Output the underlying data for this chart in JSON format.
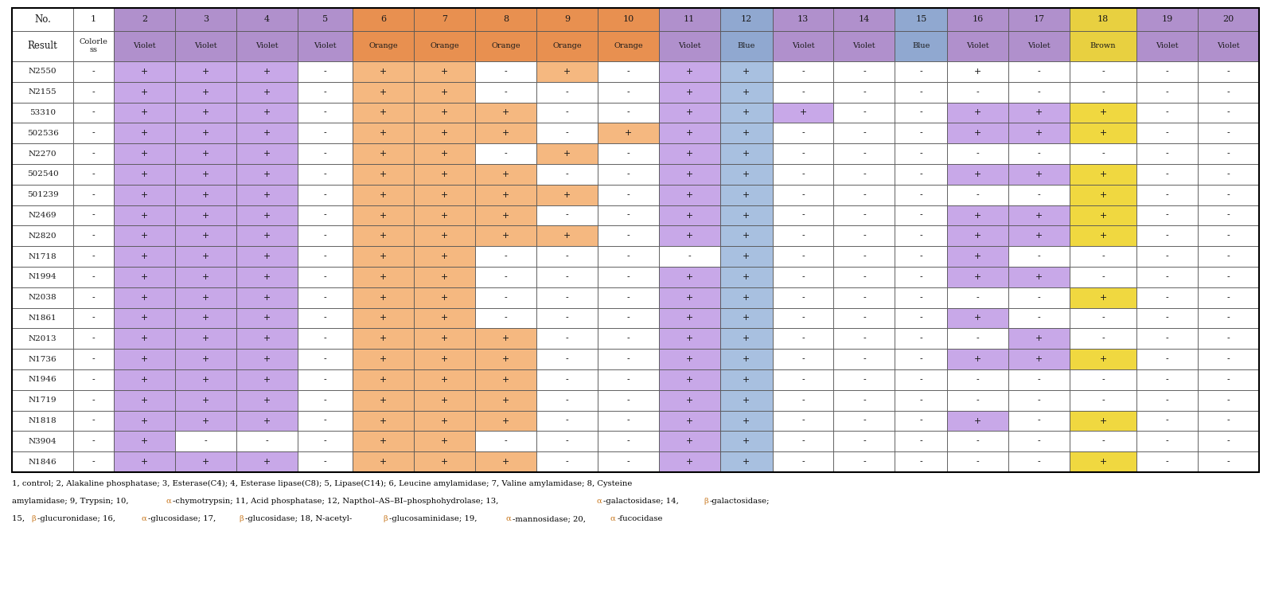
{
  "col_numbers": [
    "No.",
    "1",
    "2",
    "3",
    "4",
    "5",
    "6",
    "7",
    "8",
    "9",
    "10",
    "11",
    "12",
    "13",
    "14",
    "15",
    "16",
    "17",
    "18",
    "19",
    "20"
  ],
  "col_results": [
    "Result",
    "Colorle\nss",
    "Violet",
    "Violet",
    "Violet",
    "Violet",
    "Orange",
    "Orange",
    "Orange",
    "Orange",
    "Orange",
    "Violet",
    "Blue",
    "Violet",
    "Violet",
    "Blue",
    "Violet",
    "Violet",
    "Brown",
    "Violet",
    "Violet"
  ],
  "row_labels": [
    "N2550",
    "N2155",
    "53310",
    "502536",
    "N2270",
    "502540",
    "501239",
    "N2469",
    "N2820",
    "N1718",
    "N1994",
    "N2038",
    "N1861",
    "N2013",
    "N1736",
    "N1946",
    "N1719",
    "N1818",
    "N3904",
    "N1846"
  ],
  "data": [
    [
      "-",
      "+",
      "+",
      "+",
      "-",
      "+",
      "+",
      "-",
      "+",
      "-",
      "+",
      "+",
      "-",
      "-",
      "-",
      "+",
      "-",
      "-",
      "-",
      "-"
    ],
    [
      "-",
      "+",
      "+",
      "+",
      "-",
      "+",
      "+",
      "-",
      "-",
      "-",
      "+",
      "+",
      "-",
      "-",
      "-",
      "-",
      "-",
      "-",
      "-",
      "-"
    ],
    [
      "-",
      "+",
      "+",
      "+",
      "-",
      "+",
      "+",
      "+",
      "-",
      "-",
      "+",
      "+",
      "+",
      "-",
      "-",
      "+",
      "+",
      "+",
      "-",
      "-"
    ],
    [
      "-",
      "+",
      "+",
      "+",
      "-",
      "+",
      "+",
      "+",
      "-",
      "+",
      "+",
      "+",
      "-",
      "-",
      "-",
      "+",
      "+",
      "+",
      "-",
      "-"
    ],
    [
      "-",
      "+",
      "+",
      "+",
      "-",
      "+",
      "+",
      "-",
      "+",
      "-",
      "+",
      "+",
      "-",
      "-",
      "-",
      "-",
      "-",
      "-",
      "-",
      "-"
    ],
    [
      "-",
      "+",
      "+",
      "+",
      "-",
      "+",
      "+",
      "+",
      "-",
      "-",
      "+",
      "+",
      "-",
      "-",
      "-",
      "+",
      "+",
      "+",
      "-",
      "-"
    ],
    [
      "-",
      "+",
      "+",
      "+",
      "-",
      "+",
      "+",
      "+",
      "+",
      "-",
      "+",
      "+",
      "-",
      "-",
      "-",
      "-",
      "-",
      "+",
      "-",
      "-"
    ],
    [
      "-",
      "+",
      "+",
      "+",
      "-",
      "+",
      "+",
      "+",
      "-",
      "-",
      "+",
      "+",
      "-",
      "-",
      "-",
      "+",
      "+",
      "+",
      "-",
      "-"
    ],
    [
      "-",
      "+",
      "+",
      "+",
      "-",
      "+",
      "+",
      "+",
      "+",
      "-",
      "+",
      "+",
      "-",
      "-",
      "-",
      "+",
      "+",
      "+",
      "-",
      "-"
    ],
    [
      "-",
      "+",
      "+",
      "+",
      "-",
      "+",
      "+",
      "-",
      "-",
      "-",
      "-",
      "+",
      "-",
      "-",
      "-",
      "+",
      "-",
      "-",
      "-",
      "-"
    ],
    [
      "-",
      "+",
      "+",
      "+",
      "-",
      "+",
      "+",
      "-",
      "-",
      "-",
      "+",
      "+",
      "-",
      "-",
      "-",
      "+",
      "+",
      "-",
      "-",
      "-"
    ],
    [
      "-",
      "+",
      "+",
      "+",
      "-",
      "+",
      "+",
      "-",
      "-",
      "-",
      "+",
      "+",
      "-",
      "-",
      "-",
      "-",
      "-",
      "+",
      "-",
      "-"
    ],
    [
      "-",
      "+",
      "+",
      "+",
      "-",
      "+",
      "+",
      "-",
      "-",
      "-",
      "+",
      "+",
      "-",
      "-",
      "-",
      "+",
      "-",
      "-",
      "-",
      "-"
    ],
    [
      "-",
      "+",
      "+",
      "+",
      "-",
      "+",
      "+",
      "+",
      "-",
      "-",
      "+",
      "+",
      "-",
      "-",
      "-",
      "-",
      "+",
      "-",
      "-",
      "-"
    ],
    [
      "-",
      "+",
      "+",
      "+",
      "-",
      "+",
      "+",
      "+",
      "-",
      "-",
      "+",
      "+",
      "-",
      "-",
      "-",
      "+",
      "+",
      "+",
      "-",
      "-"
    ],
    [
      "-",
      "+",
      "+",
      "+",
      "-",
      "+",
      "+",
      "+",
      "-",
      "-",
      "+",
      "+",
      "-",
      "-",
      "-",
      "-",
      "-",
      "-",
      "-",
      "-"
    ],
    [
      "-",
      "+",
      "+",
      "+",
      "-",
      "+",
      "+",
      "+",
      "-",
      "-",
      "+",
      "+",
      "-",
      "-",
      "-",
      "-",
      "-",
      "-",
      "-",
      "-"
    ],
    [
      "-",
      "+",
      "+",
      "+",
      "-",
      "+",
      "+",
      "+",
      "-",
      "-",
      "+",
      "+",
      "-",
      "-",
      "-",
      "+",
      "-",
      "+",
      "-",
      "-"
    ],
    [
      "-",
      "+",
      "-",
      "-",
      "-",
      "+",
      "+",
      "-",
      "-",
      "-",
      "+",
      "+",
      "-",
      "-",
      "-",
      "-",
      "-",
      "-",
      "-",
      "-"
    ],
    [
      "-",
      "+",
      "+",
      "+",
      "-",
      "+",
      "+",
      "+",
      "-",
      "-",
      "+",
      "+",
      "-",
      "-",
      "-",
      "-",
      "-",
      "+",
      "-",
      "-"
    ]
  ],
  "cell_colors": [
    [
      null,
      "violet",
      "violet",
      "violet",
      null,
      "orange",
      "orange",
      null,
      "orange",
      null,
      "violet",
      "blue",
      null,
      null,
      null,
      null,
      null,
      null,
      null,
      null
    ],
    [
      null,
      "violet",
      "violet",
      "violet",
      null,
      "orange",
      "orange",
      null,
      null,
      null,
      "violet",
      "blue",
      null,
      null,
      null,
      null,
      null,
      null,
      null,
      null
    ],
    [
      null,
      "violet",
      "violet",
      "violet",
      null,
      "orange",
      "orange",
      "orange",
      null,
      null,
      "violet",
      "blue",
      "violet",
      null,
      null,
      "violet",
      "violet",
      "yellow",
      null,
      null
    ],
    [
      null,
      "violet",
      "violet",
      "violet",
      null,
      "orange",
      "orange",
      "orange",
      null,
      "orange",
      "violet",
      "blue",
      null,
      null,
      null,
      "violet",
      "violet",
      "yellow",
      null,
      null
    ],
    [
      null,
      "violet",
      "violet",
      "violet",
      null,
      "orange",
      "orange",
      null,
      "orange",
      null,
      "violet",
      "blue",
      null,
      null,
      null,
      null,
      null,
      null,
      null,
      null
    ],
    [
      null,
      "violet",
      "violet",
      "violet",
      null,
      "orange",
      "orange",
      "orange",
      null,
      null,
      "violet",
      "blue",
      null,
      null,
      null,
      "violet",
      "violet",
      "yellow",
      null,
      null
    ],
    [
      null,
      "violet",
      "violet",
      "violet",
      null,
      "orange",
      "orange",
      "orange",
      "orange",
      null,
      "violet",
      "blue",
      null,
      null,
      null,
      null,
      null,
      "yellow",
      null,
      null
    ],
    [
      null,
      "violet",
      "violet",
      "violet",
      null,
      "orange",
      "orange",
      "orange",
      null,
      null,
      "violet",
      "blue",
      null,
      null,
      null,
      "violet",
      "violet",
      "yellow",
      null,
      null
    ],
    [
      null,
      "violet",
      "violet",
      "violet",
      null,
      "orange",
      "orange",
      "orange",
      "orange",
      null,
      "violet",
      "blue",
      null,
      null,
      null,
      "violet",
      "violet",
      "yellow",
      null,
      null
    ],
    [
      null,
      "violet",
      "violet",
      "violet",
      null,
      "orange",
      "orange",
      null,
      null,
      null,
      null,
      "blue",
      null,
      null,
      null,
      "violet",
      null,
      null,
      null,
      null
    ],
    [
      null,
      "violet",
      "violet",
      "violet",
      null,
      "orange",
      "orange",
      null,
      null,
      null,
      "violet",
      "blue",
      null,
      null,
      null,
      "violet",
      "violet",
      null,
      null,
      null
    ],
    [
      null,
      "violet",
      "violet",
      "violet",
      null,
      "orange",
      "orange",
      null,
      null,
      null,
      "violet",
      "blue",
      null,
      null,
      null,
      null,
      null,
      "yellow",
      null,
      null
    ],
    [
      null,
      "violet",
      "violet",
      "violet",
      null,
      "orange",
      "orange",
      null,
      null,
      null,
      "violet",
      "blue",
      null,
      null,
      null,
      "violet",
      null,
      null,
      null,
      null
    ],
    [
      null,
      "violet",
      "violet",
      "violet",
      null,
      "orange",
      "orange",
      "orange",
      null,
      null,
      "violet",
      "blue",
      null,
      null,
      null,
      null,
      "violet",
      null,
      null,
      null
    ],
    [
      null,
      "violet",
      "violet",
      "violet",
      null,
      "orange",
      "orange",
      "orange",
      null,
      null,
      "violet",
      "blue",
      null,
      null,
      null,
      "violet",
      "violet",
      "yellow",
      null,
      null
    ],
    [
      null,
      "violet",
      "violet",
      "violet",
      null,
      "orange",
      "orange",
      "orange",
      null,
      null,
      "violet",
      "blue",
      null,
      null,
      null,
      null,
      null,
      null,
      null,
      null
    ],
    [
      null,
      "violet",
      "violet",
      "violet",
      null,
      "orange",
      "orange",
      "orange",
      null,
      null,
      "violet",
      "blue",
      null,
      null,
      null,
      null,
      null,
      null,
      null,
      null
    ],
    [
      null,
      "violet",
      "violet",
      "violet",
      null,
      "orange",
      "orange",
      "orange",
      null,
      null,
      "violet",
      "blue",
      null,
      null,
      null,
      "violet",
      null,
      "yellow",
      null,
      null
    ],
    [
      null,
      "violet",
      null,
      null,
      null,
      "orange",
      "orange",
      null,
      null,
      null,
      "violet",
      "blue",
      null,
      null,
      null,
      null,
      null,
      null,
      null,
      null
    ],
    [
      null,
      "violet",
      "violet",
      "violet",
      null,
      "orange",
      "orange",
      "orange",
      null,
      null,
      "violet",
      "blue",
      null,
      null,
      null,
      null,
      null,
      "yellow",
      null,
      null
    ]
  ],
  "color_map": {
    "violet": "#c8a8e8",
    "orange": "#f5b880",
    "blue": "#a8c0e0",
    "yellow": "#f0d840"
  },
  "header_colors": {
    "1": "#ffffff",
    "2": "#b090cc",
    "3": "#b090cc",
    "4": "#b090cc",
    "5": "#b090cc",
    "6": "#e89050",
    "7": "#e89050",
    "8": "#e89050",
    "9": "#e89050",
    "10": "#e89050",
    "11": "#b090cc",
    "12": "#90a8d0",
    "13": "#b090cc",
    "14": "#b090cc",
    "15": "#90a8d0",
    "16": "#b090cc",
    "17": "#b090cc",
    "18": "#e8d040",
    "19": "#b090cc",
    "20": "#b090cc"
  },
  "footnote_lines": [
    "1, control; 2, Alakaline phosphatase; 3, Esterase(C4); 4, Esterase lipase(C8); 5, Lipase(C14); 6, Leucine amylamidase; 7, Valine amylamidase; 8, Cysteine",
    "amylamidase; 9, Trypsin; 10, α-chymotrypsin; 11, Acid phosphatase; 12, Napthol–AS–BI–phosphohydrolase; 13, α-galactosidase; 14, β-galactosidase;",
    "15, β-glucuronidase; 16, α-glucosidase; 17, β-glucosidase; 18, N-acetyl-β-glucosaminidase; 19, α-mannosidase; 20, α-fucocidase"
  ],
  "fig_width": 15.92,
  "fig_height": 7.41,
  "dpi": 100
}
